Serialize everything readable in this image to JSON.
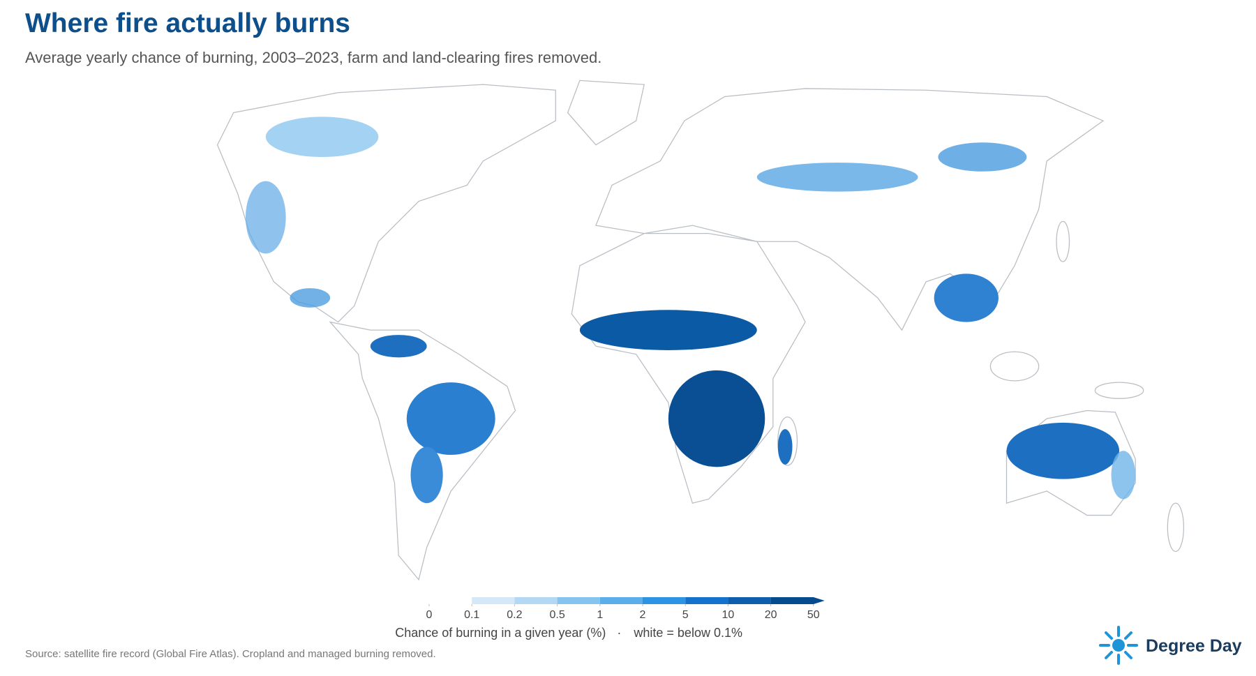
{
  "header": {
    "title": "Where fire actually burns",
    "subtitle": "Average yearly chance of burning, 2003–2023, farm and land-clearing fires removed."
  },
  "legend": {
    "ticks": [
      0,
      0.1,
      0.2,
      0.5,
      1,
      2,
      5,
      10,
      20,
      50
    ],
    "colors": [
      "#ffffff",
      "#d4e8f8",
      "#b3d8f4",
      "#86c4f0",
      "#5aaeea",
      "#2d94e3",
      "#1572cc",
      "#0d5ead",
      "#074b8f"
    ],
    "label": "Chance of burning in a given year (%)",
    "separator": "·",
    "note": "white = below 0.1%"
  },
  "footer": {
    "source": "Source: satellite fire record (Global Fire Atlas). Cropland and managed burning removed."
  },
  "brand": {
    "name": "Degree Day"
  }
}
